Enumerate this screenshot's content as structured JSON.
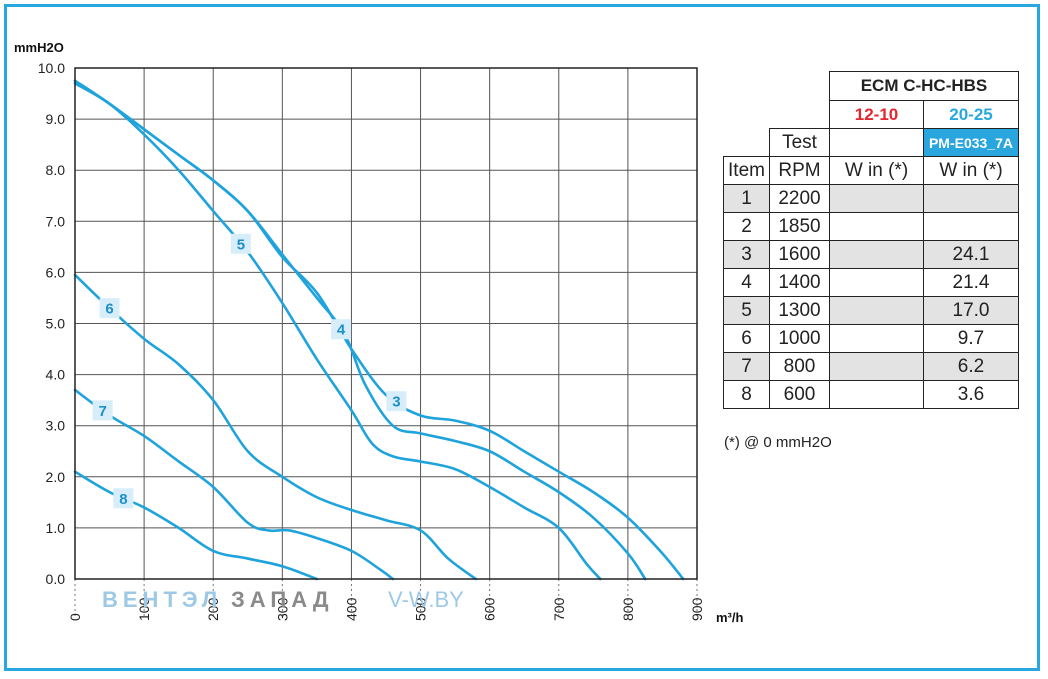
{
  "chart_data": {
    "type": "line",
    "ylabel": "mmH2O",
    "xlabel": "m³/h",
    "xlim": [
      0,
      900
    ],
    "ylim": [
      0,
      10
    ],
    "x_ticks": [
      "0",
      "100",
      "200",
      "300",
      "400",
      "500",
      "600",
      "700",
      "800",
      "900"
    ],
    "y_ticks": [
      "0.0",
      "1.0",
      "2.0",
      "3.0",
      "4.0",
      "5.0",
      "6.0",
      "7.0",
      "8.0",
      "9.0",
      "10.0"
    ],
    "grid": true,
    "series": [
      {
        "name": "3",
        "points": [
          [
            0,
            9.75
          ],
          [
            50,
            9.3
          ],
          [
            100,
            8.8
          ],
          [
            150,
            8.3
          ],
          [
            200,
            7.8
          ],
          [
            250,
            7.2
          ],
          [
            300,
            6.3
          ],
          [
            350,
            5.6
          ],
          [
            400,
            4.5
          ],
          [
            450,
            3.6
          ],
          [
            500,
            3.2
          ],
          [
            550,
            3.1
          ],
          [
            600,
            2.9
          ],
          [
            650,
            2.5
          ],
          [
            700,
            2.1
          ],
          [
            750,
            1.7
          ],
          [
            800,
            1.2
          ],
          [
            850,
            0.5
          ],
          [
            880,
            0.0
          ]
        ]
      },
      {
        "name": "4",
        "points": [
          [
            0,
            9.75
          ],
          [
            50,
            9.3
          ],
          [
            100,
            8.8
          ],
          [
            150,
            8.3
          ],
          [
            200,
            7.8
          ],
          [
            250,
            7.2
          ],
          [
            300,
            6.35
          ],
          [
            350,
            5.5
          ],
          [
            390,
            4.8
          ],
          [
            420,
            3.8
          ],
          [
            460,
            3.0
          ],
          [
            500,
            2.85
          ],
          [
            550,
            2.7
          ],
          [
            600,
            2.5
          ],
          [
            650,
            2.1
          ],
          [
            700,
            1.7
          ],
          [
            750,
            1.2
          ],
          [
            800,
            0.5
          ],
          [
            825,
            0.0
          ]
        ]
      },
      {
        "name": "5",
        "points": [
          [
            0,
            9.7
          ],
          [
            50,
            9.3
          ],
          [
            100,
            8.7
          ],
          [
            150,
            8.0
          ],
          [
            200,
            7.2
          ],
          [
            250,
            6.4
          ],
          [
            300,
            5.4
          ],
          [
            350,
            4.3
          ],
          [
            400,
            3.3
          ],
          [
            430,
            2.65
          ],
          [
            460,
            2.4
          ],
          [
            500,
            2.3
          ],
          [
            550,
            2.15
          ],
          [
            600,
            1.8
          ],
          [
            650,
            1.4
          ],
          [
            700,
            1.0
          ],
          [
            740,
            0.3
          ],
          [
            760,
            0.0
          ]
        ]
      },
      {
        "name": "6",
        "points": [
          [
            0,
            5.95
          ],
          [
            50,
            5.3
          ],
          [
            100,
            4.7
          ],
          [
            150,
            4.2
          ],
          [
            200,
            3.5
          ],
          [
            250,
            2.5
          ],
          [
            300,
            2.0
          ],
          [
            350,
            1.6
          ],
          [
            400,
            1.35
          ],
          [
            450,
            1.15
          ],
          [
            500,
            0.95
          ],
          [
            540,
            0.4
          ],
          [
            580,
            0.0
          ]
        ]
      },
      {
        "name": "7",
        "points": [
          [
            0,
            3.7
          ],
          [
            50,
            3.2
          ],
          [
            100,
            2.8
          ],
          [
            150,
            2.3
          ],
          [
            200,
            1.8
          ],
          [
            250,
            1.1
          ],
          [
            280,
            0.95
          ],
          [
            310,
            0.95
          ],
          [
            350,
            0.8
          ],
          [
            400,
            0.55
          ],
          [
            440,
            0.2
          ],
          [
            460,
            0.0
          ]
        ]
      },
      {
        "name": "8",
        "points": [
          [
            0,
            2.1
          ],
          [
            50,
            1.7
          ],
          [
            100,
            1.4
          ],
          [
            150,
            1.0
          ],
          [
            200,
            0.55
          ],
          [
            250,
            0.4
          ],
          [
            300,
            0.25
          ],
          [
            350,
            0.0
          ]
        ]
      }
    ]
  },
  "table": {
    "model": "ECM C-HC-HBS",
    "variant_red": "12-10",
    "variant_blue": "20-25",
    "test_label": "Test",
    "code": "PM-E033_7A",
    "headers": [
      "Item",
      "RPM",
      "W in (*)",
      "W in (*)"
    ],
    "rows": [
      {
        "item": "1",
        "rpm": "2200",
        "w1": "",
        "w2": ""
      },
      {
        "item": "2",
        "rpm": "1850",
        "w1": "",
        "w2": ""
      },
      {
        "item": "3",
        "rpm": "1600",
        "w1": "",
        "w2": "24.1"
      },
      {
        "item": "4",
        "rpm": "1400",
        "w1": "",
        "w2": "21.4"
      },
      {
        "item": "5",
        "rpm": "1300",
        "w1": "",
        "w2": "17.0"
      },
      {
        "item": "6",
        "rpm": "1000",
        "w1": "",
        "w2": "9.7"
      },
      {
        "item": "7",
        "rpm": "800",
        "w1": "",
        "w2": "6.2"
      },
      {
        "item": "8",
        "rpm": "600",
        "w1": "",
        "w2": "3.6"
      }
    ],
    "footnote": "(*) @ 0 mmH2O"
  },
  "watermark": {
    "part1": "ВЕНТЭЛ",
    "part2": "ЗАПАД",
    "part3": "V-W.BY"
  },
  "colors": {
    "frame": "#29a8e0",
    "curve": "#1ea3dc",
    "red_variant": "#e3262f",
    "blue_variant": "#29a8e0"
  }
}
